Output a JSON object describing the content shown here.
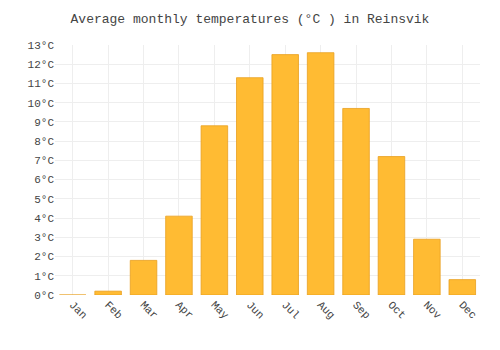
{
  "chart_data": {
    "type": "bar",
    "title": "Average monthly temperatures (°C ) in Reinsvik",
    "categories": [
      "Jan",
      "Feb",
      "Mar",
      "Apr",
      "May",
      "Jun",
      "Jul",
      "Aug",
      "Sep",
      "Oct",
      "Nov",
      "Dec"
    ],
    "values": [
      0.0,
      0.2,
      1.8,
      4.1,
      8.8,
      11.3,
      12.5,
      12.6,
      9.7,
      7.2,
      2.9,
      0.8
    ],
    "color": "#FFBB33",
    "ylim": [
      0,
      13
    ],
    "yticks": [
      {
        "value": 0,
        "label": "0°C"
      },
      {
        "value": 1,
        "label": "1°C"
      },
      {
        "value": 2,
        "label": "2°C"
      },
      {
        "value": 3,
        "label": "3°C"
      },
      {
        "value": 4,
        "label": "4°C"
      },
      {
        "value": 5,
        "label": "5°C"
      },
      {
        "value": 6,
        "label": "6°C"
      },
      {
        "value": 7,
        "label": "7°C"
      },
      {
        "value": 8,
        "label": "8°C"
      },
      {
        "value": 9,
        "label": "9°C"
      },
      {
        "value": 10,
        "label": "10°C"
      },
      {
        "value": 11,
        "label": "11°C"
      },
      {
        "value": 12,
        "label": "12°C"
      },
      {
        "value": 13,
        "label": "13°C"
      }
    ],
    "grid": true
  }
}
